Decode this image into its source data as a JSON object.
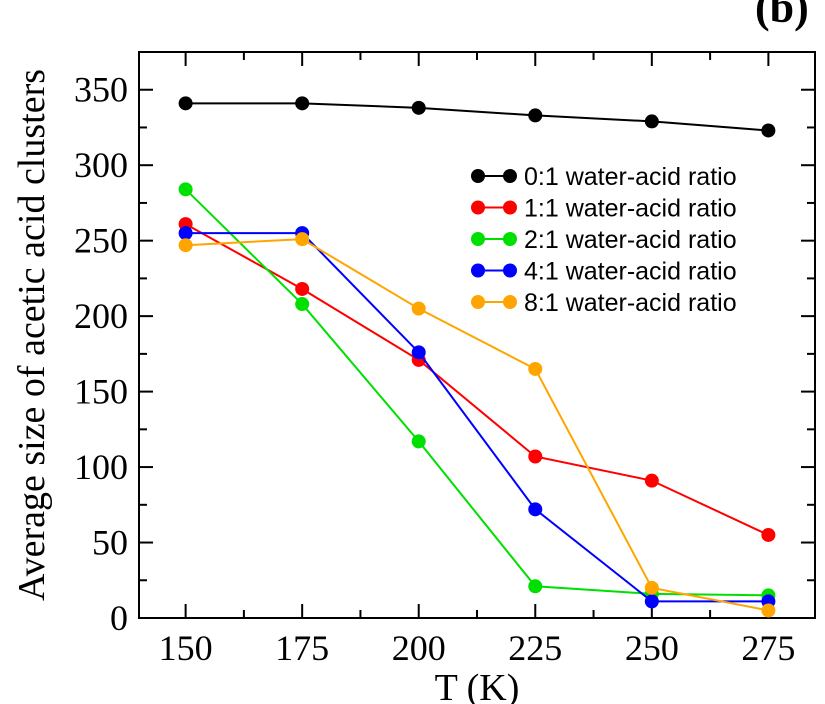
{
  "chart_data": {
    "type": "line",
    "panel_label": "(b)",
    "xlabel": "T (K)",
    "ylabel": "Average size of acetic acid clusters",
    "x": [
      150,
      175,
      200,
      225,
      250,
      275
    ],
    "xticks": [
      "150",
      "175",
      "200",
      "225",
      "250",
      "275"
    ],
    "yticks": [
      "0",
      "50",
      "100",
      "150",
      "200",
      "250",
      "300",
      "350"
    ],
    "xlim": [
      140,
      285
    ],
    "ylim": [
      0,
      375
    ],
    "grid": false,
    "legend_position": "top-right",
    "series": [
      {
        "name": "0:1 water-acid ratio",
        "color": "#000000",
        "values": [
          341,
          341,
          338,
          333,
          329,
          323
        ]
      },
      {
        "name": "1:1 water-acid ratio",
        "color": "#ff0000",
        "values": [
          261,
          218,
          171,
          107,
          91,
          55
        ]
      },
      {
        "name": "2:1 water-acid ratio",
        "color": "#00e000",
        "values": [
          284,
          208,
          117,
          21,
          16,
          15
        ]
      },
      {
        "name": "4:1 water-acid ratio",
        "color": "#0000ff",
        "values": [
          255,
          255,
          176,
          72,
          11,
          11
        ]
      },
      {
        "name": "8:1 water-acid ratio",
        "color": "#ffa500",
        "values": [
          247,
          251,
          205,
          165,
          20,
          5
        ]
      }
    ]
  }
}
